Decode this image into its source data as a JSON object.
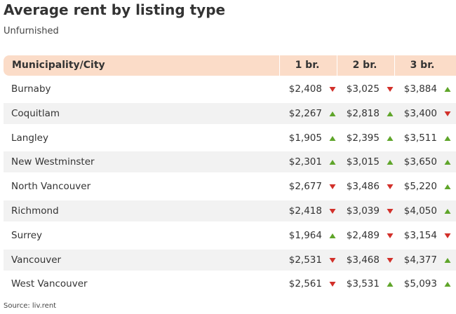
{
  "header": {
    "title": "Average rent by listing type",
    "subtitle": "Unfurnished"
  },
  "table": {
    "columns": [
      "Municipality/City",
      "1 br.",
      "2 br.",
      "3 br."
    ],
    "rows": [
      {
        "city": "Burnaby",
        "cells": [
          "$2,408",
          "$3,025",
          "$3,884"
        ],
        "trends": [
          "down",
          "down",
          "up"
        ]
      },
      {
        "city": "Coquitlam",
        "cells": [
          "$2,267",
          "$2,818",
          "$3,400"
        ],
        "trends": [
          "up",
          "up",
          "down"
        ]
      },
      {
        "city": "Langley",
        "cells": [
          "$1,905",
          "$2,395",
          "$3,511"
        ],
        "trends": [
          "up",
          "up",
          "up"
        ]
      },
      {
        "city": "New Westminster",
        "cells": [
          "$2,301",
          "$3,015",
          "$3,650"
        ],
        "trends": [
          "up",
          "up",
          "up"
        ]
      },
      {
        "city": "North Vancouver",
        "cells": [
          "$2,677",
          "$3,486",
          "$5,220"
        ],
        "trends": [
          "down",
          "down",
          "up"
        ]
      },
      {
        "city": "Richmond",
        "cells": [
          "$2,418",
          "$3,039",
          "$4,050"
        ],
        "trends": [
          "down",
          "down",
          "up"
        ]
      },
      {
        "city": "Surrey",
        "cells": [
          "$1,964",
          "$2,489",
          "$3,154"
        ],
        "trends": [
          "up",
          "down",
          "down"
        ]
      },
      {
        "city": "Vancouver",
        "cells": [
          "$2,531",
          "$3,468",
          "$4,377"
        ],
        "trends": [
          "down",
          "down",
          "up"
        ]
      },
      {
        "city": "West Vancouver",
        "cells": [
          "$2,561",
          "$3,531",
          "$5,093"
        ],
        "trends": [
          "down",
          "up",
          "up"
        ]
      }
    ]
  },
  "footer": {
    "source": "Source: liv.rent"
  }
}
